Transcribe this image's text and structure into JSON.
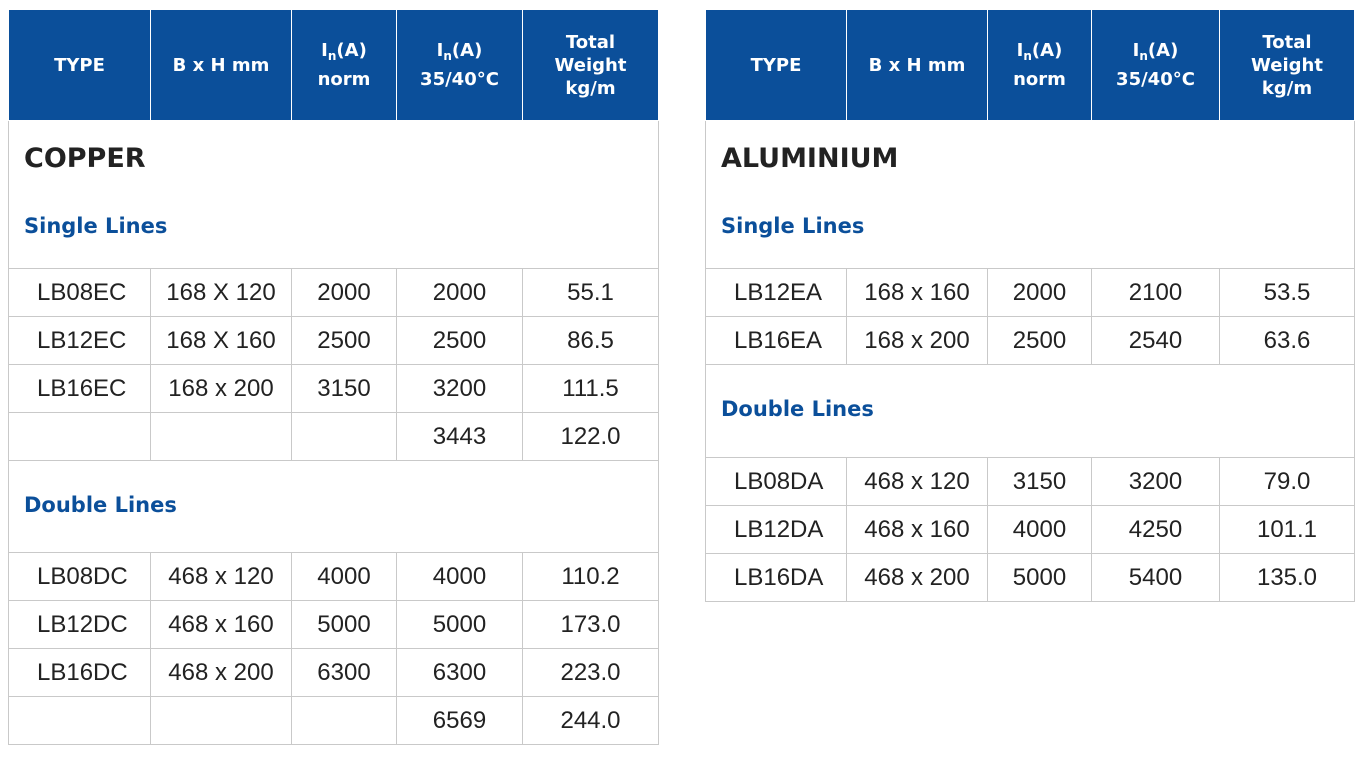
{
  "tables": [
    {
      "header": [
        {
          "text": "TYPE"
        },
        {
          "text": "B x H mm"
        },
        {
          "symbol": "I",
          "subscript": "n",
          "unit": "(A)",
          "note": "norm"
        },
        {
          "symbol": "I",
          "subscript": "n",
          "unit": "(A)",
          "note": "35/40°C"
        },
        {
          "lines": [
            "Total",
            "Weight",
            "kg/m"
          ]
        }
      ],
      "material": "COPPER",
      "sections": [
        {
          "title": "Single Lines",
          "rows": [
            [
              "LB08EC",
              "168 X 120",
              "2000",
              "2000",
              "55.1"
            ],
            [
              "LB12EC",
              "168 X 160",
              "2500",
              "2500",
              "86.5"
            ],
            [
              "LB16EC",
              "168 x 200",
              "3150",
              "3200",
              "111.5"
            ],
            [
              null,
              null,
              null,
              "3443",
              "122.0"
            ]
          ]
        },
        {
          "title": "Double Lines",
          "rows": [
            [
              "LB08DC",
              "468 x 120",
              "4000",
              "4000",
              "110.2"
            ],
            [
              "LB12DC",
              "468 x 160",
              "5000",
              "5000",
              "173.0"
            ],
            [
              "LB16DC",
              "468 x 200",
              "6300",
              "6300",
              "223.0"
            ],
            [
              null,
              null,
              null,
              "6569",
              "244.0"
            ]
          ]
        }
      ]
    },
    {
      "header": [
        {
          "text": "TYPE"
        },
        {
          "text": "B x H mm"
        },
        {
          "symbol": "I",
          "subscript": "n",
          "unit": "(A)",
          "note": "norm"
        },
        {
          "symbol": "I",
          "subscript": "n",
          "unit": "(A)",
          "note": "35/40°C"
        },
        {
          "lines": [
            "Total",
            "Weight",
            "kg/m"
          ]
        }
      ],
      "material": "ALUMINIUM",
      "sections": [
        {
          "title": "Single Lines",
          "rows": [
            [
              "LB12EA",
              "168 x 160",
              "2000",
              "2100",
              "53.5"
            ],
            [
              "LB16EA",
              "168 x 200",
              "2500",
              "2540",
              "63.6"
            ]
          ]
        },
        {
          "title": "Double Lines",
          "rows": [
            [
              "LB08DA",
              "468 x 120",
              "3150",
              "3200",
              "79.0"
            ],
            [
              "LB12DA",
              "468 x 160",
              "4000",
              "4250",
              "101.1"
            ],
            [
              "LB16DA",
              "468 x 200",
              "5000",
              "5400",
              "135.0"
            ]
          ]
        }
      ]
    }
  ]
}
